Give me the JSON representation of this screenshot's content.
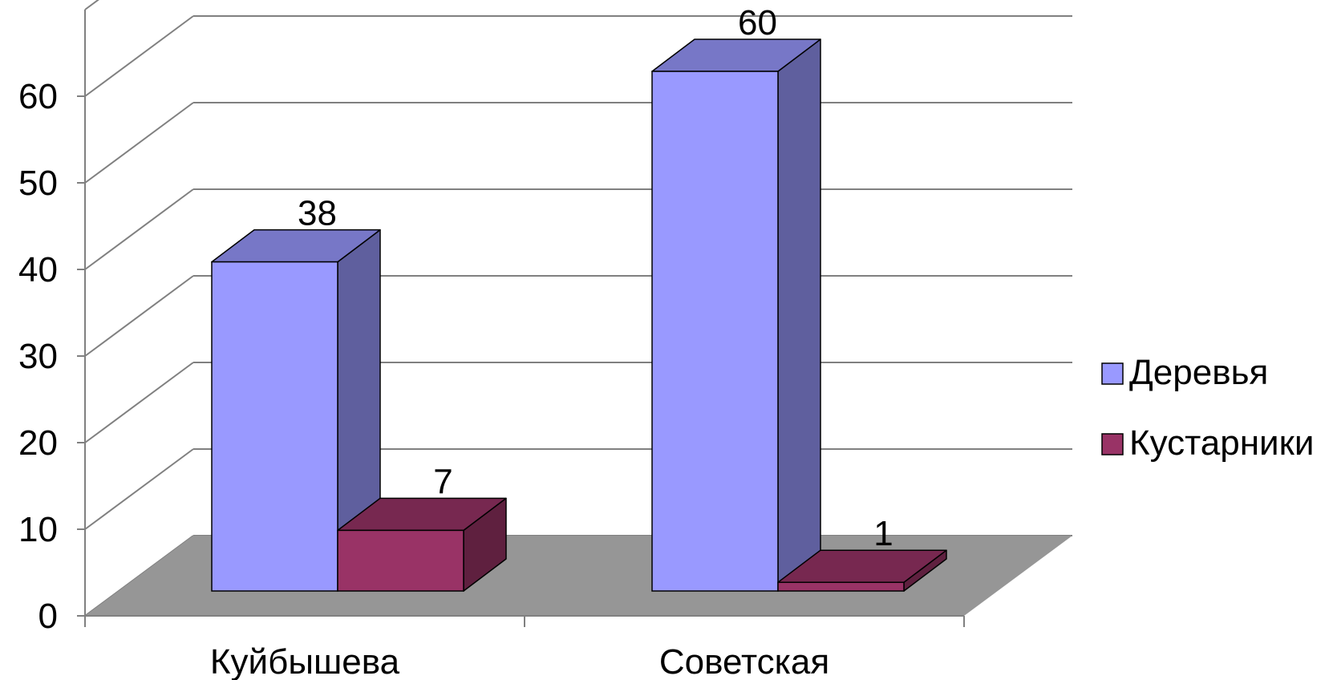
{
  "chart_data": {
    "type": "bar",
    "categories": [
      "Куйбышева",
      "Советская"
    ],
    "series": [
      {
        "name": "Деревья",
        "values": [
          38,
          60
        ],
        "color": "#9999FF"
      },
      {
        "name": "Кустарники",
        "values": [
          7,
          1
        ],
        "color": "#993366"
      }
    ],
    "ylim": [
      0,
      60
    ],
    "yticks": [
      "0",
      "10",
      "20",
      "30",
      "40",
      "50",
      "60"
    ],
    "grid": true,
    "legend": "right",
    "three_d": true,
    "floor_color": "#969696"
  }
}
